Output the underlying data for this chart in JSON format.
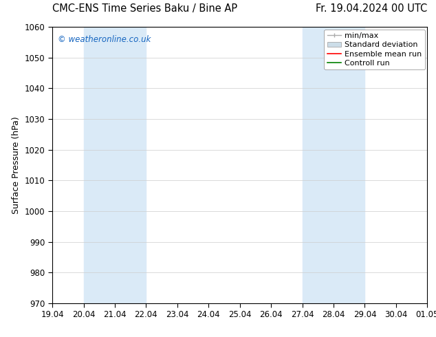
{
  "title_left": "CMC-ENS Time Series Baku / Bine AP",
  "title_right": "Fr. 19.04.2024 00 UTC",
  "ylabel": "Surface Pressure (hPa)",
  "xlabel": "",
  "ylim": [
    970,
    1060
  ],
  "yticks": [
    970,
    980,
    990,
    1000,
    1010,
    1020,
    1030,
    1040,
    1050,
    1060
  ],
  "xtick_labels": [
    "19.04",
    "20.04",
    "21.04",
    "22.04",
    "23.04",
    "24.04",
    "25.04",
    "26.04",
    "27.04",
    "28.04",
    "29.04",
    "30.04",
    "01.05"
  ],
  "background_color": "#ffffff",
  "plot_bg_color": "#ffffff",
  "shaded_regions": [
    {
      "xstart": 1,
      "xend": 3,
      "color": "#daeaf7"
    },
    {
      "xstart": 8,
      "xend": 10,
      "color": "#daeaf7"
    }
  ],
  "watermark": "© weatheronline.co.uk",
  "watermark_color": "#1565c0",
  "legend_entries": [
    "min/max",
    "Standard deviation",
    "Ensemble mean run",
    "Controll run"
  ],
  "legend_colors": [
    "#aaaaaa",
    "#ccdde8",
    "#ff0000",
    "#008000"
  ],
  "grid_color": "#cccccc",
  "tick_color": "#000000",
  "title_fontsize": 10.5,
  "axis_label_fontsize": 9,
  "tick_fontsize": 8.5,
  "legend_fontsize": 8,
  "watermark_fontsize": 8.5
}
